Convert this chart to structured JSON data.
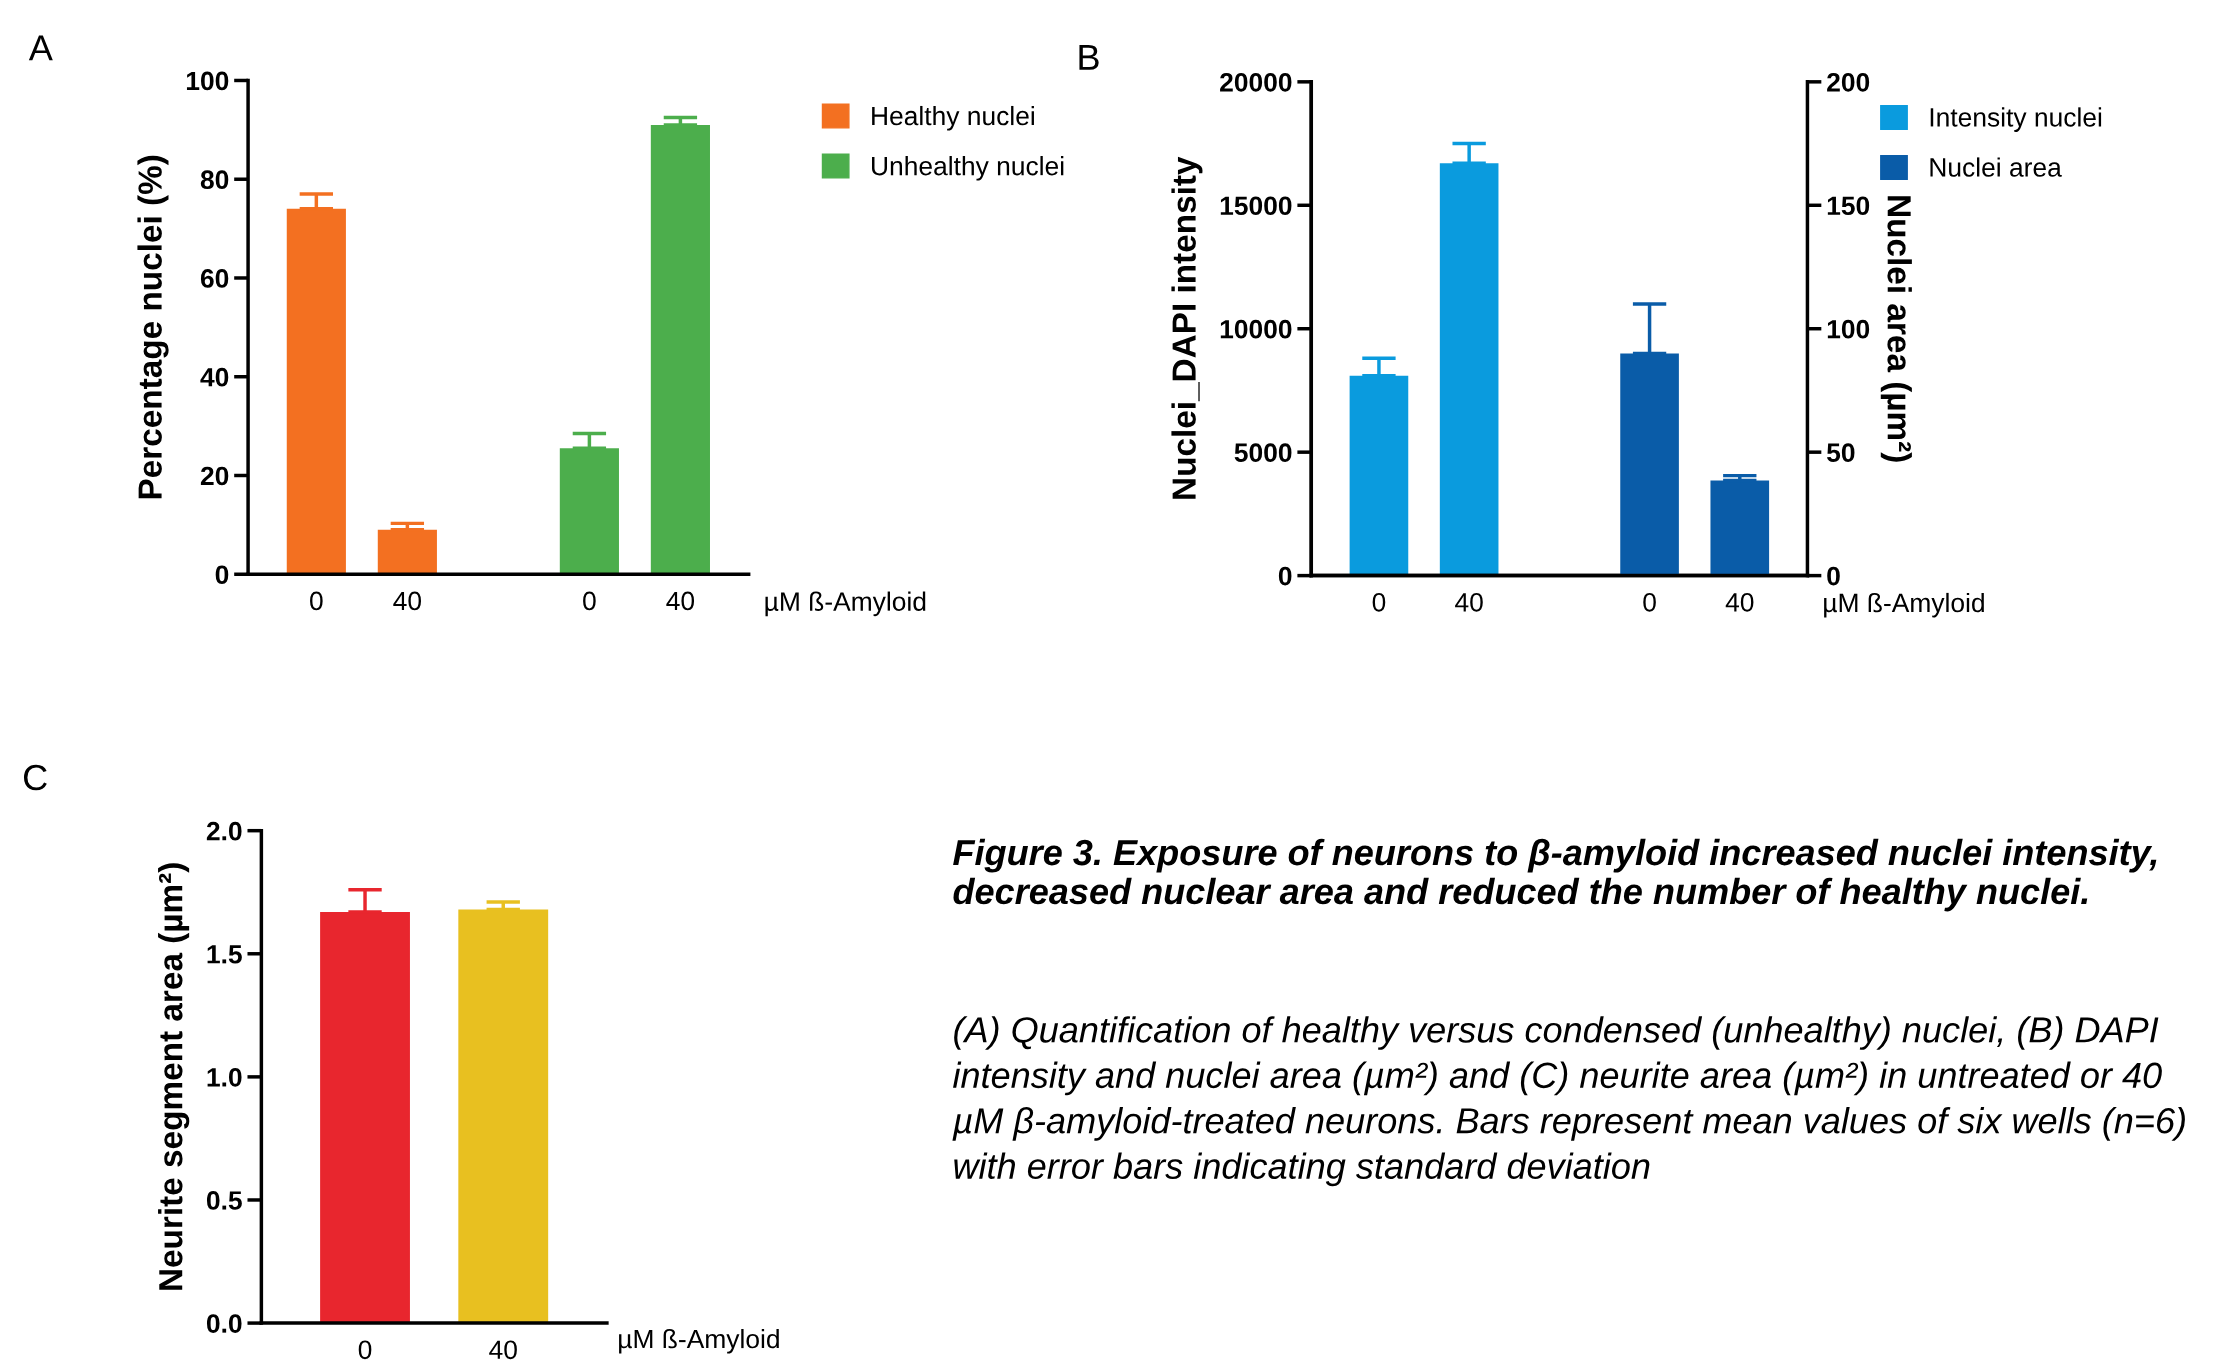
{
  "chart_data": [
    {
      "type": "bar",
      "categories": [
        "0",
        "40",
        null,
        "0",
        "40"
      ],
      "xlabel": "µM ß-Amyloid",
      "ylabel": "Percentage nuclei (%)",
      "ylim": [
        0,
        100
      ],
      "yticks": [
        0,
        20,
        40,
        60,
        80,
        100
      ],
      "grid": false,
      "legend": "top right",
      "annotations": [
        "A"
      ],
      "series": [
        {
          "name": "Healthy nuclei",
          "color": "#f37021",
          "values": [
            74,
            9,
            null,
            null,
            null
          ],
          "errors": [
            [
              74,
              77
            ],
            [
              9,
              10.3
            ],
            null,
            null,
            null
          ]
        },
        {
          "name": "Unhealthy nuclei",
          "color": "#4cae4c",
          "values": [
            null,
            null,
            null,
            25.5,
            91
          ],
          "errors": [
            null,
            null,
            null,
            [
              25.5,
              28.5
            ],
            [
              91,
              92.5
            ]
          ]
        }
      ]
    },
    {
      "type": "bar",
      "categories": [
        "0",
        "40",
        null,
        "0",
        "40"
      ],
      "xlabel": "µM ß-Amyloid",
      "ylabel": "Nuclei_DAPI intensity",
      "y2label": "Nuclei area (µm²)",
      "ylim": [
        0,
        20000
      ],
      "yticks": [
        0,
        5000,
        10000,
        15000,
        20000
      ],
      "y2lim": [
        0,
        200
      ],
      "y2ticks": [
        0,
        50,
        100,
        150,
        200
      ],
      "grid": false,
      "legend": "top right",
      "annotations": [
        "B"
      ],
      "series": [
        {
          "name": "Intensity nuclei",
          "color": "#0a9bde",
          "values": [
            8100,
            16700,
            null,
            null,
            null
          ],
          "errors": [
            [
              8100,
              8800
            ],
            [
              16700,
              17500
            ],
            null,
            null,
            null
          ]
        },
        {
          "name": "Nuclei area",
          "color": "#0a5ca8",
          "axis": "y2",
          "values": [
            null,
            null,
            null,
            90,
            38.5
          ],
          "errors": [
            null,
            null,
            null,
            [
              90,
              110
            ],
            [
              38.5,
              40.5
            ]
          ]
        }
      ]
    },
    {
      "type": "bar",
      "categories": [
        "0",
        "40"
      ],
      "xlabel": "µM ß-Amyloid",
      "ylabel": "Neurite segment area (µm²)",
      "ylim": [
        0,
        2.0
      ],
      "yticks": [
        {
          "value": 0,
          "label": "0.0"
        },
        0.5,
        {
          "value": 1,
          "label": "1.0"
        },
        1.5,
        {
          "value": 2,
          "label": "2.0"
        }
      ],
      "grid": false,
      "legend": false,
      "colors": [
        "#e8262e",
        "#e8c020"
      ],
      "values": [
        1.67,
        1.68
      ],
      "errors": [
        [
          1.67,
          1.76
        ],
        [
          1.68,
          1.71
        ]
      ],
      "annotations": [
        "C",
        "Figure 3. Exposure of neurons to β-amyloid increased nuclei intensity, decreased nuclear area and reduced the number of healthy nuclei.",
        "(A) Quantification of healthy versus condensed (unhealthy) nuclei, (B) DAPI intensity and nuclei area (µm²) and (C) neurite area (µm²) in untreated or 40 µM β-amyloid-treated neurons. Bars represent mean values of six wells (n=6) with error bars indicating standard deviation"
      ]
    }
  ]
}
